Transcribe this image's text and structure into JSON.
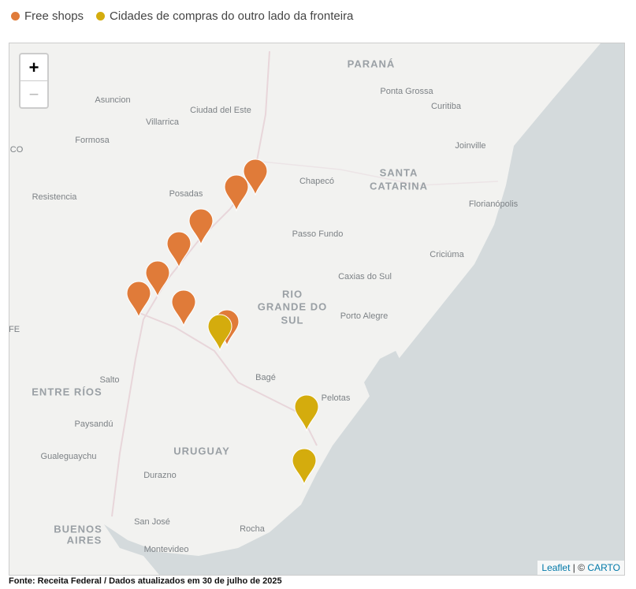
{
  "legend": {
    "items": [
      "Free shops",
      "Cidades de compras do outro lado da fronteira"
    ]
  },
  "zoom": {
    "in": "+",
    "out": "−"
  },
  "map": {
    "labels": [
      "PARANÁ",
      "Ponta Grossa",
      "Asuncion",
      "Curitiba",
      "Ciudad del Este",
      "Villarrica",
      "Formosa",
      "Joinville",
      "CO",
      "SANTA",
      "CATARINA",
      "Chapecó",
      "Posadas",
      "Resistencia",
      "Florianópolis",
      "Passo Fundo",
      "Criciúma",
      "Caxias do Sul",
      "RIO",
      "GRANDE DO",
      "SUL",
      "Porto Alegre",
      "FE",
      "Bagé",
      "Salto",
      "ENTRE RÍOS",
      "Pelotas",
      "Paysandú",
      "URUGUAY",
      "Gualeguaychu",
      "Durazno",
      "San José",
      "Rocha",
      "BUENOS",
      "AIRES",
      "Montevideo"
    ]
  },
  "attribution": {
    "leaflet": "Leaflet",
    "separator": "| ©",
    "carto": "CARTO"
  },
  "source": "Fonte: Receita Federal / Dados atualizados em 30 de julho de 2025"
}
